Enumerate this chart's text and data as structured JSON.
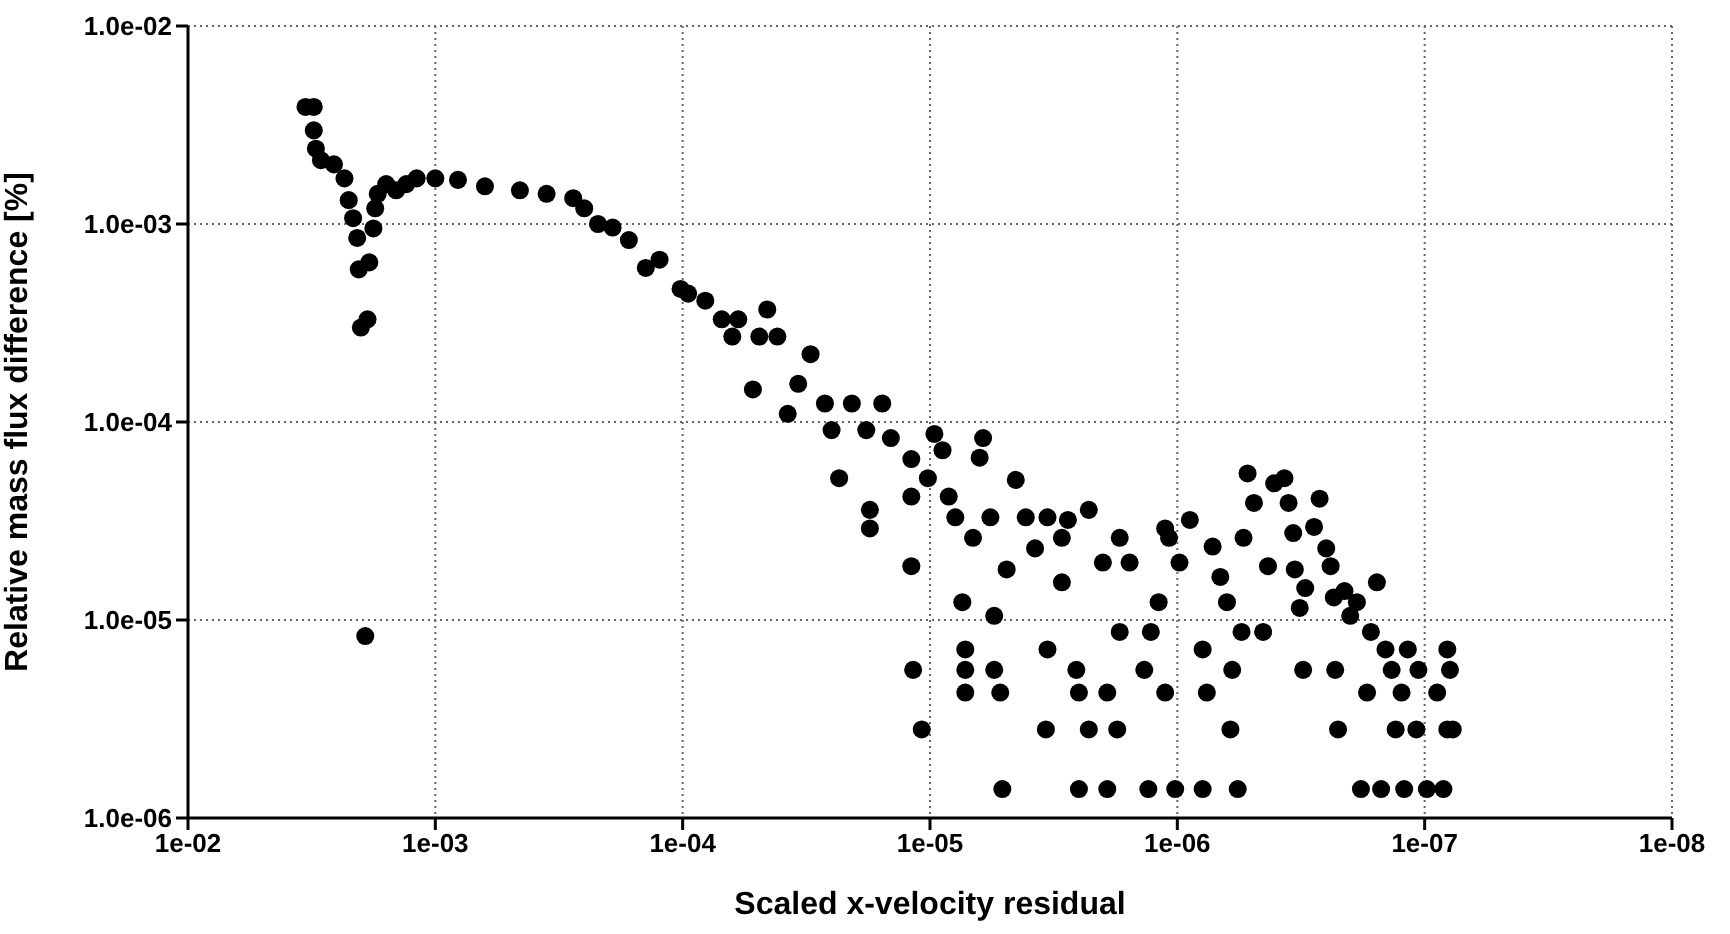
{
  "chart_data": {
    "type": "scatter",
    "xlabel": "Scaled x-velocity residual",
    "ylabel": "Relative mass flux difference [%]",
    "log": "xy",
    "grid": true,
    "marker": "circle",
    "xlim": [
      0.01,
      1e-08
    ],
    "ylim": [
      1e-06,
      0.01
    ],
    "xticks": [
      {
        "value": 0.01,
        "label": "1e-02"
      },
      {
        "value": 0.001,
        "label": "1e-03"
      },
      {
        "value": 0.0001,
        "label": "1e-04"
      },
      {
        "value": 1e-05,
        "label": "1e-05"
      },
      {
        "value": 1e-06,
        "label": "1e-06"
      },
      {
        "value": 1e-07,
        "label": "1e-07"
      },
      {
        "value": 1e-08,
        "label": "1e-08"
      }
    ],
    "yticks": [
      {
        "value": 1e-06,
        "label": "1.0e-06"
      },
      {
        "value": 1e-05,
        "label": "1.0e-05"
      },
      {
        "value": 0.0001,
        "label": "1.0e-04"
      },
      {
        "value": 0.001,
        "label": "1.0e-03"
      },
      {
        "value": 0.01,
        "label": "1.0e-02"
      }
    ],
    "series": [
      {
        "color": "#000000",
        "x": [
          0.00335,
          0.0031,
          0.0031,
          0.00304,
          0.0029,
          0.00257,
          0.00233,
          0.00224,
          0.00215,
          0.00207,
          0.00204,
          0.002,
          0.00188,
          0.00192,
          0.00185,
          0.00178,
          0.00175,
          0.00171,
          0.00158,
          0.00144,
          0.00131,
          0.00119,
          0.001,
          0.00081,
          0.00063,
          0.000455,
          0.000355,
          0.000277,
          0.00025,
          0.00022,
          0.000192,
          0.000165,
          0.000141,
          0.000124,
          0.000102,
          9.5e-05,
          8.1e-05,
          6.95e-05,
          6.3e-05,
          5.96e-05,
          5.2e-05,
          4.9e-05,
          4.55e-05,
          4.14e-05,
          3.76e-05,
          3.41e-05,
          3.04e-05,
          2.66e-05,
          2.5e-05,
          2.33e-05,
          2.07e-05,
          1.81e-05,
          1.75e-05,
          1.75e-05,
          1.56e-05,
          1.44e-05,
          1.19e-05,
          1.19e-05,
          1.19e-05,
          1.17e-05,
          1.08e-05,
          1.02e-05,
          9.6e-06,
          8.9e-06,
          8.4e-06,
          7.9e-06,
          7.4e-06,
          7.2e-06,
          7.2e-06,
          7.2e-06,
          6.7e-06,
          6.3e-06,
          6.1e-06,
          5.7e-06,
          5.5e-06,
          5.5e-06,
          5.2e-06,
          5.1e-06,
          4.9e-06,
          4.5e-06,
          4.1e-06,
          3.76e-06,
          3.4e-06,
          3.35e-06,
          3.35e-06,
          2.93e-06,
          2.93e-06,
          2.77e-06,
          2.56e-06,
          2.5e-06,
          2.5e-06,
          2.28e-06,
          2.28e-06,
          2e-06,
          1.92e-06,
          1.92e-06,
          1.75e-06,
          1.71e-06,
          1.71e-06,
          1.56e-06,
          1.36e-06,
          1.31e-06,
          1.19e-06,
          1.12e-06,
          1.12e-06,
          1.02e-06,
          1.08e-06,
          1.28e-06,
          9.8e-07,
          8.9e-07,
          7.9e-07,
          7.9e-07,
          7.6e-07,
          7.2e-07,
          6.7e-07,
          6.3e-07,
          6.1e-07,
          6e-07,
          5.7e-07,
          5.5e-07,
          5.4e-07,
          5.2e-07,
          4.9e-07,
          4.5e-07,
          4.3e-07,
          4.06e-07,
          3.69e-07,
          3.55e-07,
          3.4e-07,
          3.35e-07,
          3.2e-07,
          3.1e-07,
          3.04e-07,
          2.8e-07,
          2.66e-07,
          2.5e-07,
          2.4e-07,
          2.33e-07,
          2.3e-07,
          2.24e-07,
          2.11e-07,
          2e-07,
          1.88e-07,
          1.81e-07,
          1.71e-07,
          1.65e-07,
          1.56e-07,
          1.5e-07,
          1.44e-07,
          1.36e-07,
          1.31e-07,
          1.24e-07,
          1.21e-07,
          1.17e-07,
          1.08e-07,
          1.06e-07,
          9.8e-08,
          8.9e-08,
          8.4e-08,
          8.1e-08,
          8.1e-08,
          7.9e-08,
          7.7e-08
        ],
        "values": [
          0.0039,
          0.0039,
          0.00297,
          0.0024,
          0.0021,
          0.002,
          0.0017,
          0.00132,
          0.00107,
          0.00085,
          0.00059,
          0.0003,
          0.00033,
          8.3e-06,
          0.00064,
          0.00095,
          0.0012,
          0.00142,
          0.00159,
          0.00148,
          0.00159,
          0.0017,
          0.0017,
          0.00167,
          0.00155,
          0.00148,
          0.00142,
          0.00135,
          0.0012,
          0.001,
          0.00096,
          0.00083,
          0.0006,
          0.00066,
          0.00047,
          0.000445,
          0.00041,
          0.00033,
          0.00027,
          0.00033,
          0.000146,
          0.00027,
          0.00037,
          0.00027,
          0.00011,
          0.000156,
          0.00022,
          0.000124,
          9.1e-05,
          5.2e-05,
          0.000124,
          9.1e-05,
          3.6e-05,
          2.9e-05,
          0.000124,
          8.3e-05,
          6.5e-05,
          4.2e-05,
          1.87e-05,
          5.6e-06,
          2.8e-06,
          5.2e-05,
          8.7e-05,
          7.2e-05,
          4.2e-05,
          3.3e-05,
          1.23e-05,
          7.1e-06,
          5.6e-06,
          4.3e-06,
          2.6e-05,
          6.6e-05,
          8.3e-05,
          3.3e-05,
          1.05e-05,
          5.6e-06,
          4.3e-06,
          1.4e-06,
          1.8e-05,
          5.1e-05,
          3.3e-05,
          2.3e-05,
          2.8e-06,
          3.3e-05,
          7.1e-06,
          2.6e-05,
          1.55e-05,
          3.2e-05,
          5.6e-06,
          4.3e-06,
          1.4e-06,
          3.6e-05,
          2.8e-06,
          1.95e-05,
          4.3e-06,
          1.4e-06,
          2.8e-06,
          2.6e-05,
          8.7e-06,
          1.95e-05,
          5.6e-06,
          1.4e-06,
          1.23e-05,
          2.9e-05,
          4.3e-06,
          1.4e-06,
          2.6e-05,
          8.7e-06,
          1.95e-05,
          3.2e-05,
          7.1e-06,
          1.4e-06,
          4.3e-06,
          2.35e-05,
          1.65e-05,
          1.23e-05,
          2.8e-06,
          5.6e-06,
          1.4e-06,
          8.7e-06,
          2.6e-05,
          5.5e-05,
          3.9e-05,
          8.7e-06,
          1.87e-05,
          4.9e-05,
          5.2e-05,
          3.9e-05,
          2.75e-05,
          1.8e-05,
          1.15e-05,
          5.6e-06,
          1.45e-05,
          2.95e-05,
          4.1e-05,
          2.3e-05,
          1.87e-05,
          1.3e-05,
          5.6e-06,
          2.8e-06,
          1.4e-05,
          1.05e-05,
          1.23e-05,
          1.4e-06,
          4.3e-06,
          8.7e-06,
          1.55e-05,
          1.4e-06,
          7.1e-06,
          5.6e-06,
          2.8e-06,
          4.3e-06,
          1.4e-06,
          7.1e-06,
          2.8e-06,
          5.6e-06,
          1.4e-06,
          4.3e-06,
          1.4e-06,
          7.1e-06,
          2.8e-06,
          5.6e-06,
          2.8e-06
        ]
      }
    ]
  }
}
